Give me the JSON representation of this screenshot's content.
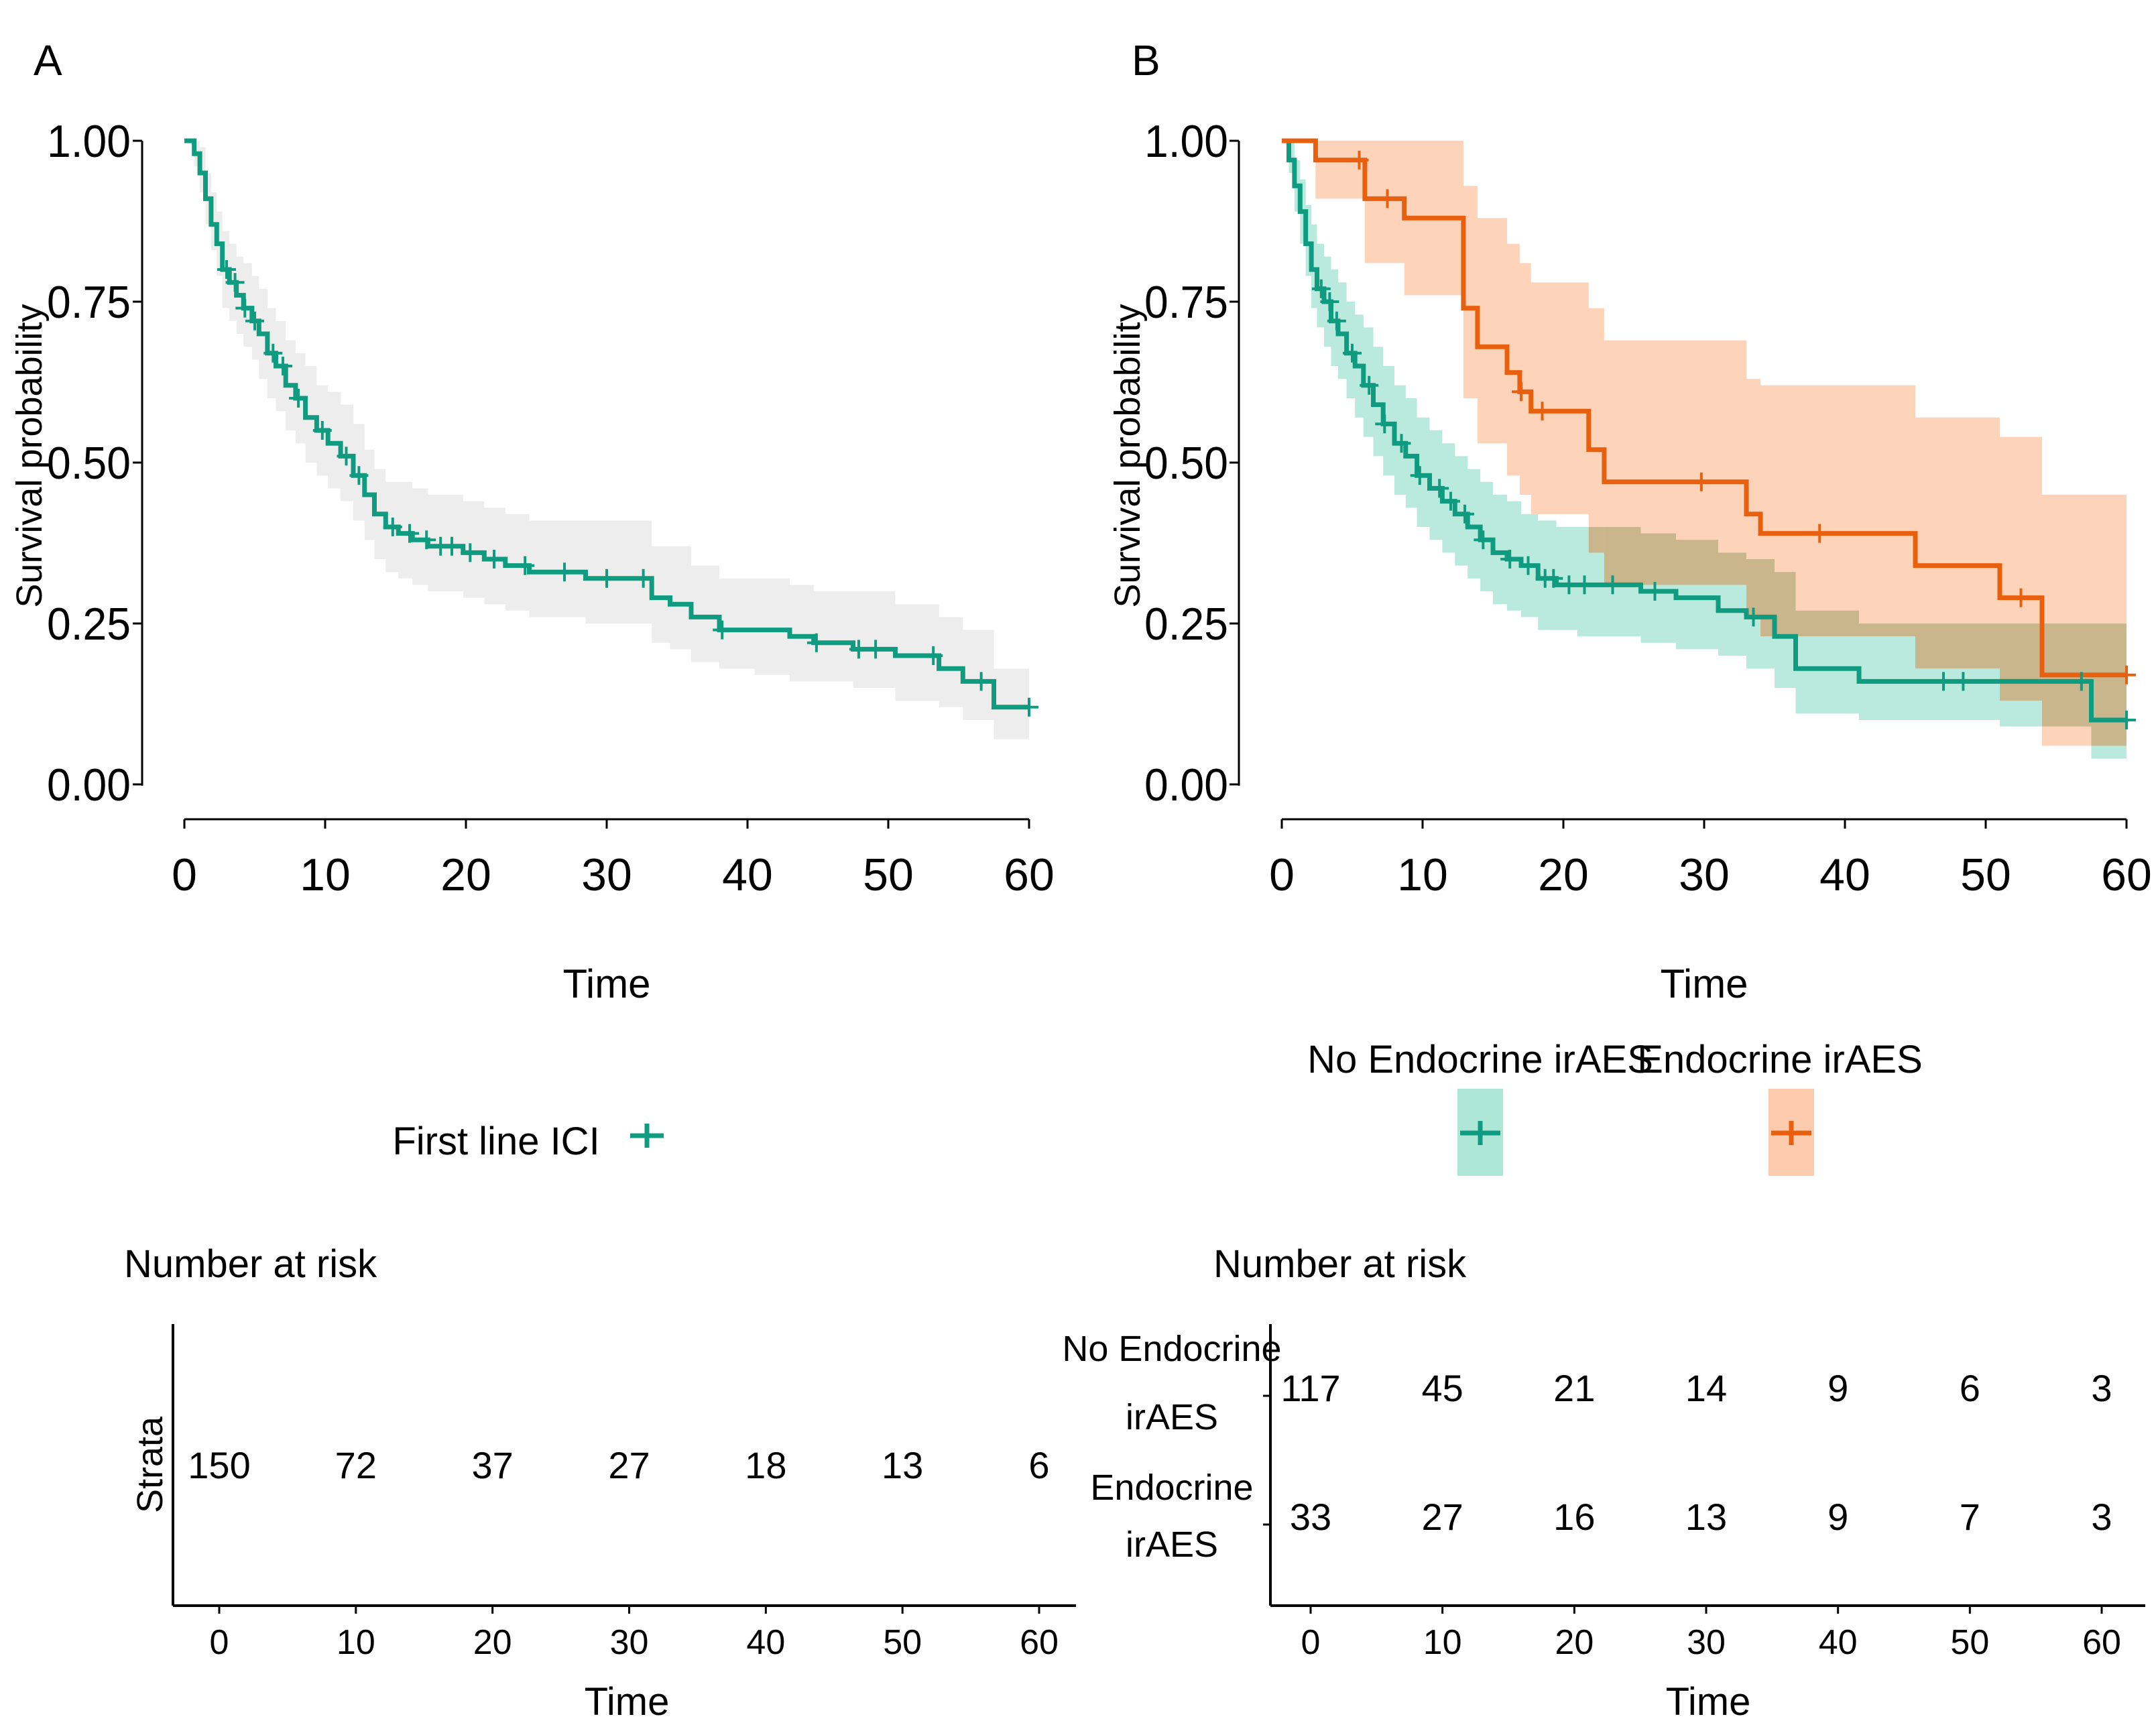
{
  "colors": {
    "teal": "#0f9b7f",
    "teal_band": "#aee6d8",
    "orange": "#e8600e",
    "orange_band": "#fdcbae",
    "grey_band": "#ededed",
    "overlap_band": "#c4b287"
  },
  "chart_data": [
    {
      "panel_label": "A",
      "type": "line",
      "step": true,
      "xlabel": "Time",
      "ylabel": "Survival probability",
      "xlim": [
        0,
        60
      ],
      "ylim": [
        0,
        1
      ],
      "x_ticks": [
        "0",
        "10",
        "20",
        "30",
        "40",
        "50",
        "60"
      ],
      "y_ticks": [
        "0.00",
        "0.25",
        "0.50",
        "0.75",
        "1.00"
      ],
      "legend_title": "First line ICI",
      "series": [
        {
          "name": "First line ICI",
          "color_key": "teal",
          "band_key": "grey_band",
          "x": [
            0,
            0.7,
            1.1,
            1.5,
            1.9,
            2.3,
            2.7,
            3.2,
            3.7,
            4.2,
            4.8,
            5.3,
            5.9,
            6.5,
            7.2,
            7.9,
            8.6,
            9.4,
            10.2,
            11.1,
            12,
            12.8,
            13.5,
            14.3,
            15.2,
            16.2,
            17.3,
            18.5,
            19.8,
            21.3,
            22.8,
            24.5,
            26.5,
            28.5,
            30.8,
            33.2,
            34.5,
            36,
            38,
            40.5,
            43,
            44.7,
            47.5,
            50.5,
            53.6,
            55.3,
            57.5,
            60
          ],
          "y": [
            1.0,
            0.98,
            0.95,
            0.91,
            0.87,
            0.84,
            0.8,
            0.78,
            0.76,
            0.74,
            0.72,
            0.7,
            0.67,
            0.65,
            0.62,
            0.6,
            0.57,
            0.55,
            0.53,
            0.51,
            0.48,
            0.45,
            0.42,
            0.4,
            0.39,
            0.38,
            0.37,
            0.37,
            0.36,
            0.35,
            0.34,
            0.33,
            0.33,
            0.32,
            0.32,
            0.29,
            0.28,
            0.26,
            0.24,
            0.24,
            0.23,
            0.22,
            0.21,
            0.2,
            0.18,
            0.16,
            0.12,
            0.12
          ],
          "lower": [
            1.0,
            0.96,
            0.92,
            0.87,
            0.83,
            0.79,
            0.74,
            0.72,
            0.7,
            0.68,
            0.66,
            0.63,
            0.6,
            0.58,
            0.55,
            0.53,
            0.5,
            0.48,
            0.46,
            0.44,
            0.41,
            0.38,
            0.35,
            0.33,
            0.32,
            0.31,
            0.3,
            0.3,
            0.29,
            0.28,
            0.27,
            0.26,
            0.26,
            0.25,
            0.25,
            0.22,
            0.21,
            0.19,
            0.18,
            0.17,
            0.16,
            0.16,
            0.15,
            0.13,
            0.12,
            0.1,
            0.07,
            0.07
          ],
          "upper": [
            1.0,
            1.0,
            0.99,
            0.95,
            0.92,
            0.89,
            0.86,
            0.84,
            0.82,
            0.81,
            0.79,
            0.77,
            0.74,
            0.72,
            0.69,
            0.67,
            0.65,
            0.62,
            0.61,
            0.59,
            0.56,
            0.52,
            0.49,
            0.47,
            0.47,
            0.46,
            0.45,
            0.45,
            0.44,
            0.43,
            0.42,
            0.41,
            0.41,
            0.41,
            0.41,
            0.37,
            0.37,
            0.34,
            0.32,
            0.32,
            0.31,
            0.3,
            0.3,
            0.28,
            0.26,
            0.24,
            0.18,
            0.18
          ]
        }
      ],
      "censor_marks": [
        {
          "series": 0,
          "x": [
            3.0,
            3.6,
            4.3,
            5.0,
            6.3,
            7.0,
            8.1,
            9.8,
            11.5,
            12.4,
            14.8,
            16.0,
            17.2,
            18.2,
            19.0,
            20.3,
            22.0,
            24.2,
            27.0,
            30.0,
            32.6,
            38.2,
            44.9,
            47.9,
            49.1,
            53.2,
            56.6,
            60.0
          ]
        }
      ],
      "risk_table": {
        "title": "Number at risk",
        "ylabel": "Strata",
        "xlabel": "Time",
        "x_ticks": [
          "0",
          "10",
          "20",
          "30",
          "40",
          "50",
          "60"
        ],
        "rows": [
          {
            "label": "",
            "values": [
              "150",
              "72",
              "37",
              "27",
              "18",
              "13",
              "6"
            ]
          }
        ]
      }
    },
    {
      "panel_label": "B",
      "type": "line",
      "step": true,
      "xlabel": "Time",
      "ylabel": "Survival probability",
      "xlim": [
        0,
        60
      ],
      "ylim": [
        0,
        1
      ],
      "x_ticks": [
        "0",
        "10",
        "20",
        "30",
        "40",
        "50",
        "60"
      ],
      "y_ticks": [
        "0.00",
        "0.25",
        "0.50",
        "0.75",
        "1.00"
      ],
      "legend": [
        "No Endocrine irAES",
        "Endocrine irAES"
      ],
      "series": [
        {
          "name": "No Endocrine irAES",
          "color_key": "teal",
          "band_key": "teal_band",
          "x": [
            0,
            0.5,
            0.9,
            1.3,
            1.7,
            2.1,
            2.5,
            3.0,
            3.5,
            4.0,
            4.6,
            5.2,
            5.8,
            6.5,
            7.2,
            8.0,
            8.8,
            9.6,
            10.5,
            11.4,
            12.3,
            13.2,
            14.1,
            15.0,
            16.0,
            17.0,
            18.2,
            19.5,
            21.0,
            23.0,
            25.5,
            28.0,
            31.0,
            33.0,
            35.0,
            36.5,
            41.0,
            47.0,
            51.0,
            57.5,
            60
          ],
          "y": [
            1.0,
            0.97,
            0.93,
            0.89,
            0.84,
            0.8,
            0.77,
            0.75,
            0.72,
            0.7,
            0.67,
            0.65,
            0.62,
            0.59,
            0.56,
            0.53,
            0.51,
            0.48,
            0.46,
            0.44,
            0.42,
            0.4,
            0.38,
            0.36,
            0.35,
            0.34,
            0.32,
            0.31,
            0.31,
            0.31,
            0.3,
            0.29,
            0.27,
            0.26,
            0.23,
            0.18,
            0.16,
            0.16,
            0.16,
            0.1,
            0.1
          ],
          "lower": [
            1.0,
            0.95,
            0.89,
            0.84,
            0.79,
            0.74,
            0.71,
            0.68,
            0.65,
            0.63,
            0.6,
            0.57,
            0.54,
            0.51,
            0.48,
            0.45,
            0.43,
            0.4,
            0.38,
            0.36,
            0.34,
            0.32,
            0.3,
            0.28,
            0.27,
            0.26,
            0.24,
            0.24,
            0.23,
            0.23,
            0.22,
            0.21,
            0.2,
            0.18,
            0.15,
            0.11,
            0.1,
            0.1,
            0.09,
            0.04,
            0.04
          ],
          "upper": [
            1.0,
            1.0,
            0.97,
            0.94,
            0.9,
            0.87,
            0.84,
            0.82,
            0.8,
            0.78,
            0.75,
            0.73,
            0.71,
            0.68,
            0.65,
            0.62,
            0.6,
            0.57,
            0.55,
            0.53,
            0.51,
            0.49,
            0.47,
            0.45,
            0.44,
            0.42,
            0.41,
            0.4,
            0.4,
            0.4,
            0.39,
            0.38,
            0.36,
            0.35,
            0.33,
            0.27,
            0.25,
            0.25,
            0.25,
            0.25,
            0.25
          ]
        },
        {
          "name": "Endocrine irAES",
          "color_key": "orange",
          "band_key": "orange_band",
          "x": [
            0,
            2.4,
            5.9,
            8.7,
            12.9,
            13.9,
            16.0,
            16.9,
            17.7,
            21.8,
            22.9,
            33.0,
            34.0,
            45.0,
            51.0,
            54.0,
            60
          ],
          "y": [
            1.0,
            0.97,
            0.91,
            0.88,
            0.74,
            0.68,
            0.64,
            0.61,
            0.58,
            0.52,
            0.47,
            0.42,
            0.39,
            0.34,
            0.29,
            0.17,
            0.17
          ],
          "lower": [
            1.0,
            0.91,
            0.81,
            0.76,
            0.6,
            0.53,
            0.48,
            0.45,
            0.42,
            0.36,
            0.31,
            0.26,
            0.23,
            0.18,
            0.13,
            0.06,
            0.06
          ],
          "upper": [
            1.0,
            1.0,
            1.0,
            1.0,
            0.93,
            0.88,
            0.84,
            0.81,
            0.78,
            0.74,
            0.69,
            0.63,
            0.62,
            0.57,
            0.54,
            0.45,
            0.45
          ]
        }
      ],
      "censor_marks": [
        {
          "series": 0,
          "x": [
            2.8,
            3.4,
            3.9,
            5.0,
            6.2,
            7.3,
            8.5,
            9.8,
            11.2,
            12.0,
            13.0,
            14.3,
            16.2,
            17.5,
            18.7,
            19.3,
            20.4,
            21.5,
            23.5,
            26.5,
            33.5,
            47.0,
            48.4,
            56.8,
            60.0
          ]
        },
        {
          "series": 1,
          "x": [
            5.5,
            7.5,
            17.0,
            18.5,
            29.8,
            38.2,
            52.5,
            60.0
          ]
        }
      ],
      "risk_table": {
        "title": "Number at risk",
        "xlabel": "Time",
        "x_ticks": [
          "0",
          "10",
          "20",
          "30",
          "40",
          "50",
          "60"
        ],
        "rows": [
          {
            "label_line1": "No Endocrine",
            "label_line2": "irAES",
            "color_key": "teal",
            "values": [
              "117",
              "45",
              "21",
              "14",
              "9",
              "6",
              "3"
            ]
          },
          {
            "label_line1": "Endocrine",
            "label_line2": "irAES",
            "color_key": "orange",
            "values": [
              "33",
              "27",
              "16",
              "13",
              "9",
              "7",
              "3"
            ]
          }
        ]
      }
    }
  ]
}
